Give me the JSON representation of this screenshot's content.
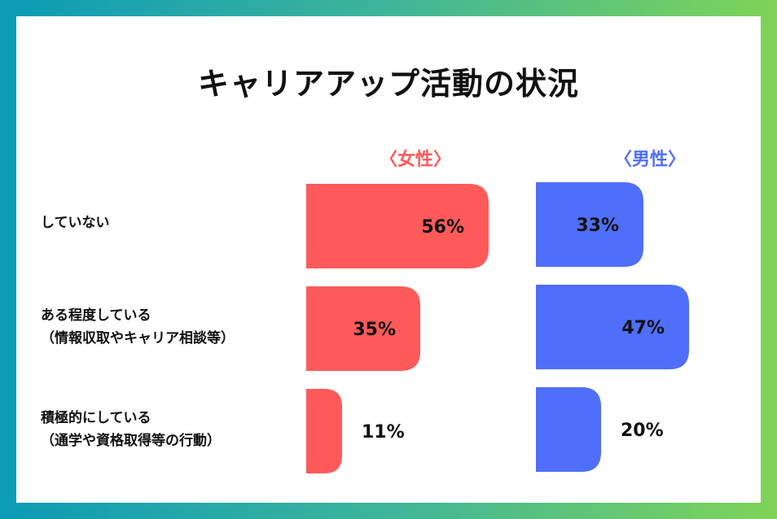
{
  "chart_data": {
    "type": "bar",
    "title": "キャリアアップ活動の状況",
    "categories": [
      "していない",
      "ある程度している\n（情報収取やキャリア相談等）",
      "積極的にしている\n（通学や資格取得等の行動）"
    ],
    "series": [
      {
        "name": "〈女性〉",
        "color": "#ff5a5a",
        "values": [
          56,
          35,
          11
        ],
        "labels": [
          "56%",
          "35%",
          "11%"
        ]
      },
      {
        "name": "〈男性〉",
        "color": "#4f6ffb",
        "values": [
          33,
          47,
          20
        ],
        "labels": [
          "33%",
          "47%",
          "20%"
        ]
      }
    ],
    "ylim": [
      0,
      100
    ]
  }
}
